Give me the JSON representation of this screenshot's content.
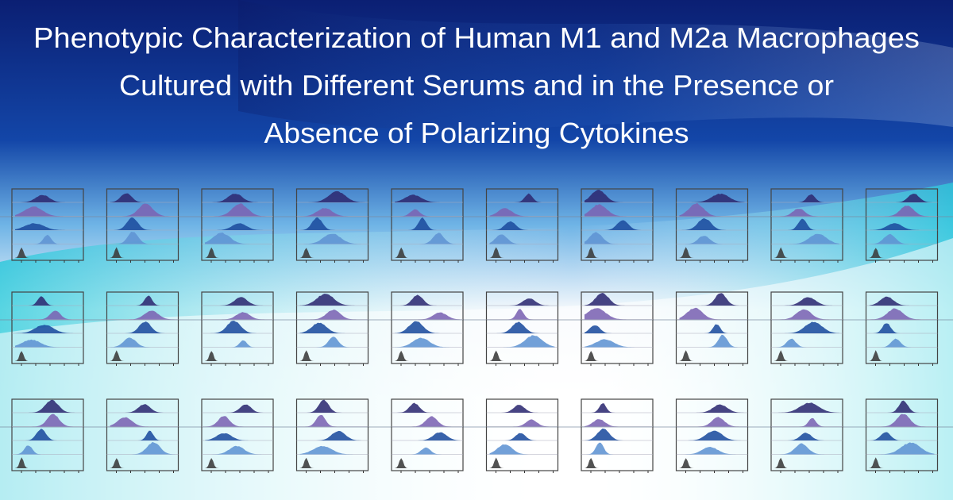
{
  "title": {
    "lines": [
      "Phenotypic Characterization of Human M1 and M2a Macrophages",
      "Cultured with Different Serums and in the Presence or",
      "Absence of Polarizing Cytokines"
    ]
  }
}
